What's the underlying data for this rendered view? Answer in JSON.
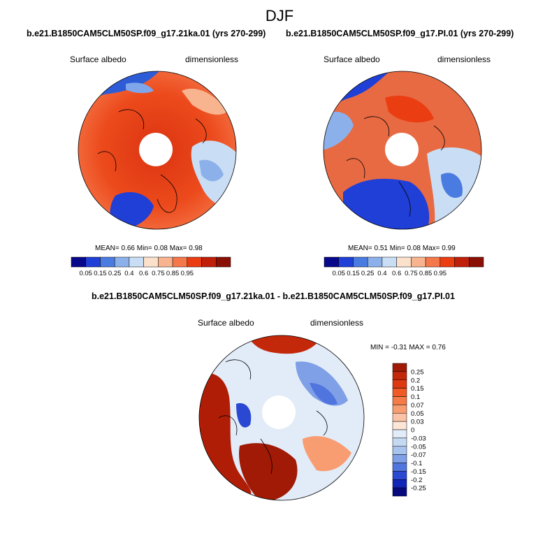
{
  "page": {
    "season": "DJF"
  },
  "panels": [
    {
      "case_title": "b.e21.B1850CAM5CLM50SP.f09_g17.21ka.01 (yrs 270-299)",
      "variable": "Surface albedo",
      "units": "dimensionless",
      "stats": {
        "mean_label": "MEAN=",
        "mean": "0.66",
        "min_label": "Min=",
        "min": "0.08",
        "max_label": "Max=",
        "max": "0.98"
      }
    },
    {
      "case_title": "b.e21.B1850CAM5CLM50SP.f09_g17.PI.01 (yrs 270-299)",
      "variable": "Surface albedo",
      "units": "dimensionless",
      "stats": {
        "mean_label": "MEAN=",
        "mean": "0.51",
        "min_label": "Min=",
        "min": "0.08",
        "max_label": "Max=",
        "max": "0.99"
      }
    },
    {
      "case_title": "b.e21.B1850CAM5CLM50SP.f09_g17.21ka.01 - b.e21.B1850CAM5CLM50SP.f09_g17.PI.01",
      "variable": "Surface albedo",
      "units": "dimensionless",
      "stats": {
        "min_label": "MIN =",
        "min": "-0.31",
        "max_label": "MAX =",
        "max": "0.76"
      }
    }
  ],
  "chart_data": [
    {
      "type": "heatmap",
      "projection": "north-polar-stereographic",
      "title": "b.e21.B1850CAM5CLM50SP.f09_g17.21ka.01 (yrs 270-299)",
      "variable": "Surface albedo",
      "units": "dimensionless",
      "mean": 0.66,
      "min": 0.08,
      "max": 0.98,
      "colorbar": {
        "orientation": "horizontal",
        "levels": [
          "0.05",
          "0.15",
          "0.25",
          "0.4",
          "0.6",
          "0.75",
          "0.85",
          "0.95"
        ],
        "colors": [
          "#08088a",
          "#1f3fd6",
          "#4a7be0",
          "#8cb1ea",
          "#c9def5",
          "#fbe0cc",
          "#f8b48f",
          "#f5784a",
          "#ea3d12",
          "#c0200a",
          "#8a0f05"
        ]
      }
    },
    {
      "type": "heatmap",
      "projection": "north-polar-stereographic",
      "title": "b.e21.B1850CAM5CLM50SP.f09_g17.PI.01 (yrs 270-299)",
      "variable": "Surface albedo",
      "units": "dimensionless",
      "mean": 0.51,
      "min": 0.08,
      "max": 0.99,
      "colorbar": {
        "orientation": "horizontal",
        "levels": [
          "0.05",
          "0.15",
          "0.25",
          "0.4",
          "0.6",
          "0.75",
          "0.85",
          "0.95"
        ],
        "colors": [
          "#08088a",
          "#1f3fd6",
          "#4a7be0",
          "#8cb1ea",
          "#c9def5",
          "#fbe0cc",
          "#f8b48f",
          "#f5784a",
          "#ea3d12",
          "#c0200a",
          "#8a0f05"
        ]
      }
    },
    {
      "type": "heatmap",
      "projection": "north-polar-stereographic",
      "title": "b.e21.B1850CAM5CLM50SP.f09_g17.21ka.01 - b.e21.B1850CAM5CLM50SP.f09_g17.PI.01",
      "variable": "Surface albedo",
      "units": "dimensionless",
      "min": -0.31,
      "max": 0.76,
      "colorbar": {
        "orientation": "vertical",
        "levels": [
          "0.25",
          "0.2",
          "0.15",
          "0.1",
          "0.07",
          "0.05",
          "0.03",
          "0",
          "-0.03",
          "-0.05",
          "-0.07",
          "-0.1",
          "-0.15",
          "-0.2",
          "-0.25"
        ],
        "colors": [
          "#a01a05",
          "#c4280b",
          "#dd3a12",
          "#ef5a26",
          "#f57b48",
          "#f89d72",
          "#fbc2a6",
          "#fde6d6",
          "#e2ecf8",
          "#c6d9f3",
          "#a8c3ee",
          "#7f9fe7",
          "#5175df",
          "#2a48d2",
          "#1125b6",
          "#060a7e"
        ]
      }
    }
  ]
}
